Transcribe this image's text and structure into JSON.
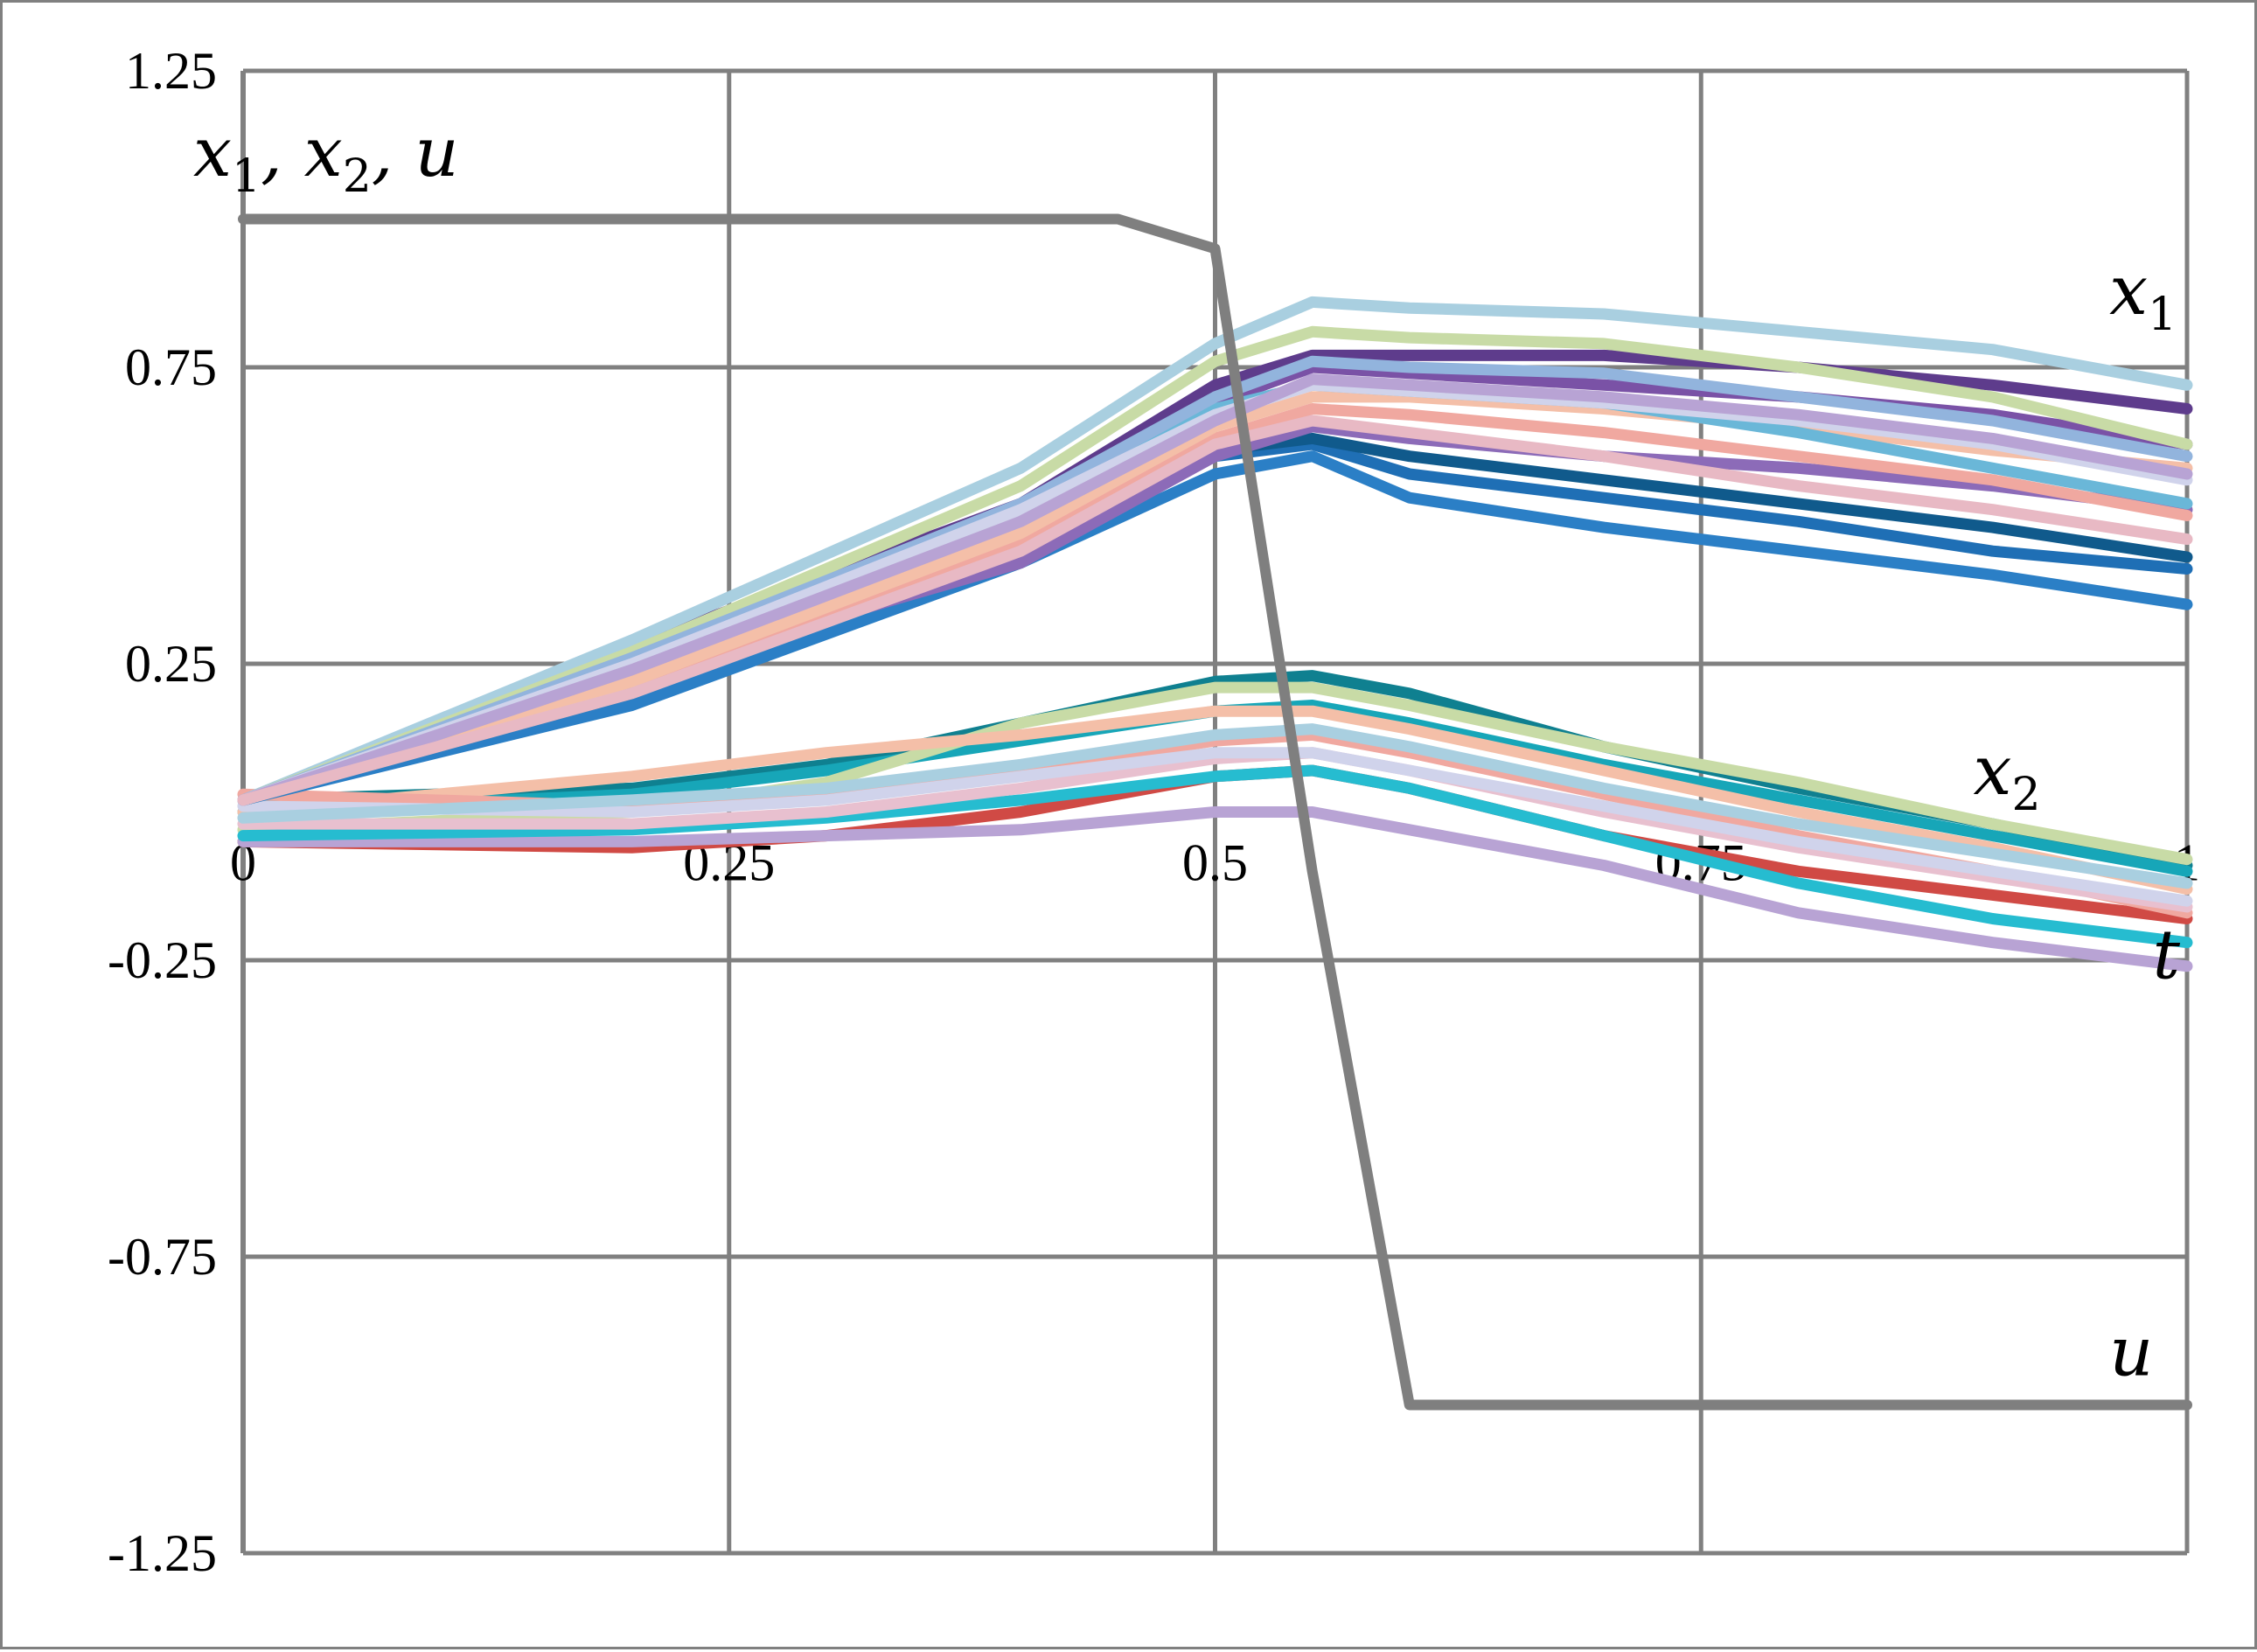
{
  "chart_data": {
    "type": "line",
    "title": "",
    "ylabel": "x1, x2, u",
    "ylabel_parts": [
      {
        "main": "x",
        "sub": "1",
        "sep": ", "
      },
      {
        "main": "x",
        "sub": "2",
        "sep": ", "
      },
      {
        "main": "u",
        "sub": "",
        "sep": ""
      }
    ],
    "xlabel": "t",
    "xlim": [
      0,
      1
    ],
    "ylim": [
      -1.25,
      1.25
    ],
    "x_ticks": [
      "0",
      "0.25",
      "0.5",
      "0.75",
      "1"
    ],
    "x_tick_values": [
      0,
      0.25,
      0.5,
      0.75,
      1
    ],
    "y_ticks": [
      "1.25",
      "0.75",
      "0.25",
      "-0.25",
      "-0.75",
      "-1.25"
    ],
    "y_tick_values": [
      1.25,
      0.75,
      0.25,
      -0.25,
      -0.75,
      -1.25
    ],
    "grid": true,
    "annotations": [
      {
        "main": "x",
        "sub": "1",
        "x": 0.96,
        "y": 0.84
      },
      {
        "main": "x",
        "sub": "2",
        "x": 0.89,
        "y": 0.03
      },
      {
        "main": "u",
        "sub": "",
        "x": 0.96,
        "y": -0.95
      }
    ],
    "control": {
      "color": "#7f7f7f",
      "x": [
        0,
        0.45,
        0.5,
        0.55,
        0.6,
        1
      ],
      "y": [
        1,
        1,
        0.95,
        -0.1,
        -1,
        -1
      ]
    },
    "series_x1": [
      {
        "color": "#1f6fb5",
        "x": [
          0,
          0.2,
          0.4,
          0.5,
          0.55,
          0.6,
          0.7,
          0.8,
          0.9,
          1
        ],
        "y": [
          0.02,
          0.19,
          0.44,
          0.6,
          0.62,
          0.57,
          0.53,
          0.49,
          0.44,
          0.41
        ]
      },
      {
        "color": "#2b7fc6",
        "x": [
          0,
          0.2,
          0.4,
          0.5,
          0.55,
          0.6,
          0.7,
          0.8,
          0.9,
          1
        ],
        "y": [
          0.02,
          0.18,
          0.42,
          0.57,
          0.6,
          0.53,
          0.48,
          0.44,
          0.4,
          0.35
        ]
      },
      {
        "color": "#105a8c",
        "x": [
          0,
          0.2,
          0.4,
          0.5,
          0.55,
          0.6,
          0.7,
          0.8,
          0.9,
          1
        ],
        "y": [
          0.02,
          0.2,
          0.45,
          0.61,
          0.63,
          0.6,
          0.56,
          0.52,
          0.48,
          0.43
        ]
      },
      {
        "color": "#5e3c8c",
        "x": [
          0,
          0.2,
          0.4,
          0.5,
          0.55,
          0.6,
          0.7,
          0.8,
          0.9,
          1
        ],
        "y": [
          0.02,
          0.28,
          0.52,
          0.72,
          0.77,
          0.77,
          0.77,
          0.75,
          0.72,
          0.68
        ]
      },
      {
        "color": "#7a52a6",
        "x": [
          0,
          0.2,
          0.4,
          0.5,
          0.55,
          0.6,
          0.7,
          0.8,
          0.9,
          1
        ],
        "y": [
          0.02,
          0.26,
          0.5,
          0.69,
          0.75,
          0.74,
          0.72,
          0.7,
          0.67,
          0.62
        ]
      },
      {
        "color": "#8c6bb8",
        "x": [
          0,
          0.2,
          0.4,
          0.5,
          0.55,
          0.6,
          0.7,
          0.8,
          0.9,
          1
        ],
        "y": [
          0.02,
          0.23,
          0.42,
          0.6,
          0.65,
          0.63,
          0.6,
          0.58,
          0.55,
          0.51
        ]
      },
      {
        "color": "#a9cfe0",
        "x": [
          0,
          0.2,
          0.4,
          0.5,
          0.55,
          0.6,
          0.7,
          0.8,
          0.9,
          1
        ],
        "y": [
          0.02,
          0.29,
          0.58,
          0.79,
          0.86,
          0.85,
          0.84,
          0.81,
          0.78,
          0.72
        ]
      },
      {
        "color": "#c8dba6",
        "x": [
          0,
          0.2,
          0.4,
          0.5,
          0.55,
          0.6,
          0.7,
          0.8,
          0.9,
          1
        ],
        "y": [
          0.02,
          0.27,
          0.55,
          0.76,
          0.81,
          0.8,
          0.79,
          0.75,
          0.7,
          0.62
        ]
      },
      {
        "color": "#f0a8a0",
        "x": [
          0,
          0.2,
          0.4,
          0.5,
          0.55,
          0.6,
          0.7,
          0.8,
          0.9,
          1
        ],
        "y": [
          0.02,
          0.22,
          0.45,
          0.63,
          0.68,
          0.67,
          0.64,
          0.6,
          0.56,
          0.5
        ]
      },
      {
        "color": "#f4bfa8",
        "x": [
          0,
          0.2,
          0.4,
          0.5,
          0.55,
          0.6,
          0.7,
          0.8,
          0.9,
          1
        ],
        "y": [
          0.02,
          0.22,
          0.47,
          0.65,
          0.7,
          0.7,
          0.68,
          0.65,
          0.61,
          0.58
        ]
      },
      {
        "color": "#6ab7d8",
        "x": [
          0,
          0.2,
          0.4,
          0.5,
          0.55,
          0.6,
          0.7,
          0.8,
          0.9,
          1
        ],
        "y": [
          0.02,
          0.25,
          0.5,
          0.68,
          0.72,
          0.71,
          0.69,
          0.64,
          0.58,
          0.52
        ]
      },
      {
        "color": "#92b4dd",
        "x": [
          0,
          0.2,
          0.4,
          0.5,
          0.55,
          0.6,
          0.7,
          0.8,
          0.9,
          1
        ],
        "y": [
          0.02,
          0.26,
          0.52,
          0.7,
          0.76,
          0.75,
          0.74,
          0.7,
          0.66,
          0.6
        ]
      },
      {
        "color": "#d0d3eb",
        "x": [
          0,
          0.2,
          0.4,
          0.5,
          0.55,
          0.6,
          0.7,
          0.8,
          0.9,
          1
        ],
        "y": [
          0.02,
          0.25,
          0.51,
          0.67,
          0.72,
          0.71,
          0.69,
          0.66,
          0.62,
          0.56
        ]
      },
      {
        "color": "#b8a3d4",
        "x": [
          0,
          0.2,
          0.4,
          0.5,
          0.55,
          0.6,
          0.7,
          0.8,
          0.9,
          1
        ],
        "y": [
          0.02,
          0.24,
          0.49,
          0.66,
          0.73,
          0.72,
          0.7,
          0.67,
          0.63,
          0.57
        ]
      },
      {
        "color": "#e8b9c4",
        "x": [
          0,
          0.2,
          0.4,
          0.5,
          0.55,
          0.6,
          0.7,
          0.8,
          0.9,
          1
        ],
        "y": [
          0.02,
          0.2,
          0.44,
          0.62,
          0.66,
          0.64,
          0.6,
          0.55,
          0.51,
          0.46
        ]
      }
    ],
    "series_x2": [
      {
        "color": "#0f8090",
        "x": [
          0,
          0.2,
          0.3,
          0.4,
          0.5,
          0.55,
          0.6,
          0.7,
          0.8,
          0.9,
          1
        ],
        "y": [
          0.02,
          0.04,
          0.08,
          0.15,
          0.22,
          0.23,
          0.2,
          0.11,
          0.04,
          -0.02,
          -0.09
        ]
      },
      {
        "color": "#17a6b8",
        "x": [
          0,
          0.2,
          0.3,
          0.4,
          0.5,
          0.55,
          0.6,
          0.7,
          0.8,
          0.9,
          1
        ],
        "y": [
          0.0,
          0.03,
          0.07,
          0.12,
          0.17,
          0.18,
          0.15,
          0.08,
          0.02,
          -0.04,
          -0.1
        ]
      },
      {
        "color": "#d04a45",
        "x": [
          0,
          0.2,
          0.3,
          0.4,
          0.5,
          0.55,
          0.6,
          0.7,
          0.8,
          0.9,
          1
        ],
        "y": [
          -0.05,
          -0.06,
          -0.04,
          0.0,
          0.06,
          0.07,
          0.04,
          -0.04,
          -0.1,
          -0.14,
          -0.18
        ]
      },
      {
        "color": "#c8dba6",
        "x": [
          0,
          0.2,
          0.3,
          0.4,
          0.5,
          0.55,
          0.6,
          0.7,
          0.8,
          0.9,
          1
        ],
        "y": [
          -0.03,
          0.0,
          0.05,
          0.15,
          0.21,
          0.21,
          0.18,
          0.11,
          0.05,
          -0.02,
          -0.08
        ]
      },
      {
        "color": "#b8a3d4",
        "x": [
          0,
          0.2,
          0.3,
          0.4,
          0.5,
          0.55,
          0.6,
          0.7,
          0.8,
          0.9,
          1
        ],
        "y": [
          -0.05,
          -0.05,
          -0.04,
          -0.03,
          0.0,
          0.0,
          -0.03,
          -0.09,
          -0.17,
          -0.22,
          -0.26
        ]
      },
      {
        "color": "#f4bfa8",
        "x": [
          0,
          0.2,
          0.3,
          0.4,
          0.5,
          0.55,
          0.6,
          0.7,
          0.8,
          0.9,
          1
        ],
        "y": [
          0.0,
          0.06,
          0.1,
          0.13,
          0.17,
          0.17,
          0.14,
          0.07,
          0.0,
          -0.06,
          -0.13
        ]
      },
      {
        "color": "#26bcd0",
        "x": [
          0,
          0.2,
          0.3,
          0.4,
          0.5,
          0.55,
          0.6,
          0.7,
          0.8,
          0.9,
          1
        ],
        "y": [
          -0.04,
          -0.03,
          -0.01,
          0.02,
          0.06,
          0.07,
          0.04,
          -0.04,
          -0.12,
          -0.18,
          -0.22
        ]
      },
      {
        "color": "#f0a8a0",
        "x": [
          0,
          0.2,
          0.3,
          0.4,
          0.5,
          0.55,
          0.6,
          0.7,
          0.8,
          0.9,
          1
        ],
        "y": [
          0.03,
          0.01,
          0.03,
          0.07,
          0.12,
          0.13,
          0.1,
          0.03,
          -0.04,
          -0.1,
          -0.17
        ]
      },
      {
        "color": "#e8c0cf",
        "x": [
          0,
          0.2,
          0.3,
          0.4,
          0.5,
          0.55,
          0.6,
          0.7,
          0.8,
          0.9,
          1
        ],
        "y": [
          -0.02,
          -0.02,
          0.0,
          0.04,
          0.09,
          0.1,
          0.07,
          0.0,
          -0.06,
          -0.11,
          -0.16
        ]
      },
      {
        "color": "#d0d3eb",
        "x": [
          0,
          0.2,
          0.3,
          0.4,
          0.5,
          0.55,
          0.6,
          0.7,
          0.8,
          0.9,
          1
        ],
        "y": [
          0.01,
          0.0,
          0.02,
          0.06,
          0.1,
          0.1,
          0.07,
          0.01,
          -0.05,
          -0.1,
          -0.15
        ]
      },
      {
        "color": "#a9cfe0",
        "x": [
          0,
          0.2,
          0.3,
          0.4,
          0.5,
          0.55,
          0.6,
          0.7,
          0.8,
          0.9,
          1
        ],
        "y": [
          -0.01,
          0.02,
          0.04,
          0.08,
          0.13,
          0.14,
          0.11,
          0.04,
          -0.02,
          -0.07,
          -0.12
        ]
      }
    ]
  }
}
